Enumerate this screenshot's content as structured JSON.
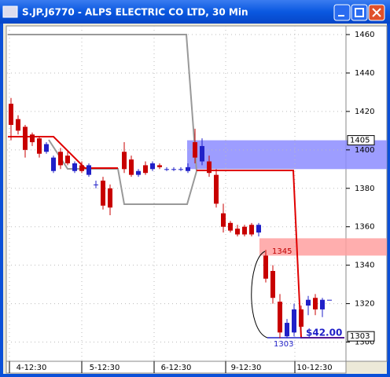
{
  "window": {
    "title": "S.JP.J6770 - ALPS ELECTRIC CO LTD, 30 Min"
  },
  "chart_data": {
    "type": "candlestick",
    "categories": [
      "4-12:30",
      "5-12:30",
      "6-12:30",
      "9-12:30",
      "10-12:30"
    ],
    "open": [
      1424,
      1416,
      1412,
      1408,
      1406,
      1399,
      1389,
      1399,
      1397,
      1389,
      1392,
      1387,
      1382,
      1384,
      1380,
      null,
      1399,
      1395,
      1387,
      1392,
      1390,
      1392,
      1390,
      1390,
      1390,
      1389,
      1404,
      1394,
      1394,
      1387,
      1367,
      1362,
      1359,
      1360,
      1361,
      1357,
      1345,
      1337,
      1321,
      1303,
      1305,
      1317,
      1319,
      1323,
      1317,
      1322
    ],
    "high": [
      1427,
      1418,
      1413,
      1409,
      1407,
      1404,
      1397,
      1401,
      1399,
      1394,
      1394,
      1393,
      1384,
      1386,
      1382,
      null,
      1404,
      1397,
      1390,
      1394,
      1394,
      1393,
      1391,
      1391,
      1391,
      1393,
      1411,
      1406,
      1397,
      1390,
      1372,
      1363,
      1361,
      1361,
      1362,
      1362,
      1348,
      1340,
      1325,
      1312,
      1320,
      1319,
      1324,
      1325,
      1323,
      1322
    ],
    "low": [
      1405,
      1408,
      1396,
      1402,
      1396,
      1398,
      1388,
      1390,
      1392,
      1388,
      1388,
      1386,
      1380,
      1369,
      1366,
      null,
      1388,
      1386,
      1386,
      1387,
      1389,
      1390,
      1389,
      1389,
      1389,
      1388,
      1393,
      1392,
      1386,
      1370,
      1357,
      1357,
      1355,
      1355,
      1355,
      1355,
      1331,
      1320,
      1302,
      1302,
      1303,
      1305,
      1314,
      1314,
      1313,
      1322
    ],
    "close": [
      1413,
      1410,
      1400,
      1404,
      1398,
      1403,
      1396,
      1392,
      1393,
      1393,
      1389,
      1392,
      1382,
      1371,
      1370,
      null,
      1390,
      1387,
      1389,
      1388,
      1393,
      1391,
      1390,
      1390,
      1390,
      1391,
      1396,
      1402,
      1388,
      1372,
      1360,
      1358,
      1356,
      1356,
      1356,
      1361,
      1333,
      1323,
      1305,
      1310,
      1317,
      1308,
      1322,
      1317,
      1322,
      1322
    ],
    "up_color": "#2020c8",
    "down_color": "#c80000",
    "ylim": [
      1290,
      1464.5
    ],
    "yticks": [
      1300,
      1320,
      1340,
      1360,
      1380,
      1400,
      1420,
      1440,
      1460
    ],
    "grid": true,
    "zones": [
      {
        "low": 1390,
        "high": 1405,
        "color": "#8c8cff"
      },
      {
        "low": 1345,
        "high": 1354,
        "color": "#ffa0a0"
      }
    ],
    "price_tags": [
      1405,
      1303
    ],
    "annotations": [
      "1345",
      "1303",
      "$42.00"
    ]
  }
}
